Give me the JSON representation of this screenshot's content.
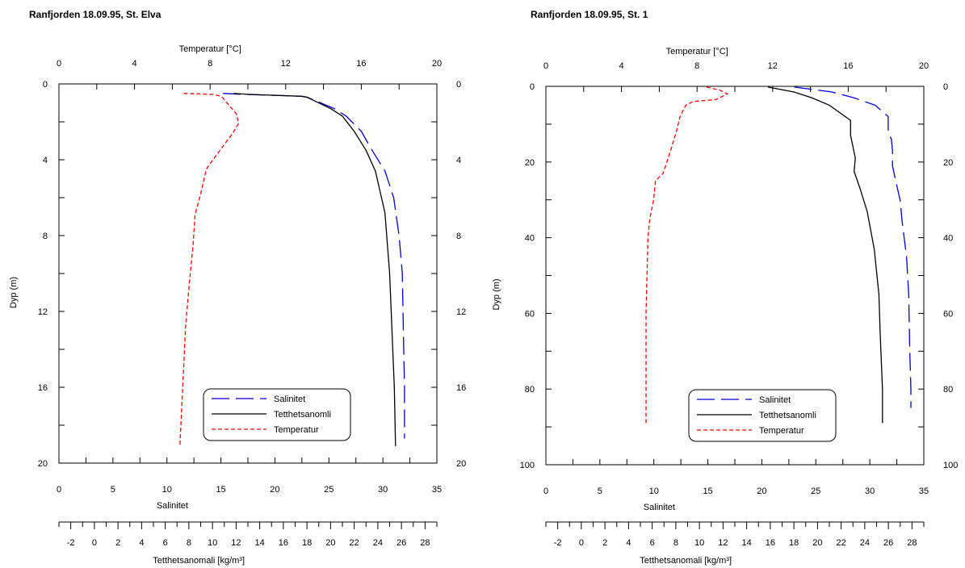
{
  "chart_data": [
    {
      "type": "line",
      "title": "Ranfjorden 18.09.95, St. Elva",
      "ylabel": "Dyp (m)",
      "ylim": [
        20,
        0
      ],
      "yticks": [
        0,
        4,
        8,
        12,
        16,
        20
      ],
      "yticks_right": [
        0,
        4,
        8,
        12,
        16,
        20
      ],
      "top_axis": {
        "label": "Temperatur [°C]",
        "lim": [
          0,
          20
        ],
        "ticks": [
          0,
          4,
          8,
          12,
          16,
          20
        ]
      },
      "bottom_axis": {
        "label": "Salinitet",
        "lim": [
          0,
          35
        ],
        "ticks": [
          0,
          5,
          10,
          15,
          20,
          25,
          30,
          35
        ]
      },
      "density_axis": {
        "label": "Tetthetsanomali [kg/m³]",
        "lim": [
          -3,
          29
        ],
        "ticks": [
          -2,
          0,
          2,
          4,
          6,
          8,
          10,
          12,
          14,
          16,
          18,
          20,
          22,
          24,
          26,
          28
        ]
      },
      "legend": {
        "position": "bottom-right",
        "entries": [
          "Salinitet",
          "Tetthetsanomli",
          "Temperatur"
        ]
      },
      "series": [
        {
          "name": "Salinitet",
          "axis": "salinity",
          "color": "#0000cc",
          "dash": "long",
          "points": [
            [
              15.2,
              0.5
            ],
            [
              17,
              0.55
            ],
            [
              22.5,
              0.65
            ],
            [
              23,
              0.7
            ],
            [
              25.5,
              1.3
            ],
            [
              26.6,
              1.7
            ],
            [
              28,
              2.5
            ],
            [
              29,
              3.5
            ],
            [
              30.2,
              4.6
            ],
            [
              31,
              6
            ],
            [
              31.5,
              8
            ],
            [
              31.8,
              10
            ],
            [
              31.9,
              13
            ],
            [
              32,
              16
            ],
            [
              32,
              18.7
            ]
          ]
        },
        {
          "name": "Tetthetsanomli",
          "axis": "density",
          "color": "#000000",
          "dash": "solid",
          "points": [
            [
              11.8,
              0.5
            ],
            [
              13,
              0.55
            ],
            [
              17.5,
              0.65
            ],
            [
              18,
              0.7
            ],
            [
              20,
              1.3
            ],
            [
              21,
              1.7
            ],
            [
              22,
              2.5
            ],
            [
              23,
              3.5
            ],
            [
              23.8,
              4.6
            ],
            [
              24.6,
              6.8
            ],
            [
              25,
              10
            ],
            [
              25.2,
              13
            ],
            [
              25.4,
              16
            ],
            [
              25.5,
              19.1
            ]
          ]
        },
        {
          "name": "Temperatur",
          "axis": "temperature",
          "color": "#ff0000",
          "dash": "short",
          "points": [
            [
              6.6,
              0.5
            ],
            [
              8.1,
              0.55
            ],
            [
              8.6,
              0.65
            ],
            [
              9.4,
              1.6
            ],
            [
              9.5,
              2.1
            ],
            [
              9.2,
              2.6
            ],
            [
              8.6,
              3.4
            ],
            [
              8,
              4.2
            ],
            [
              7.8,
              4.5
            ],
            [
              7.5,
              5.8
            ],
            [
              7.2,
              6.9
            ],
            [
              7.1,
              8.5
            ],
            [
              6.9,
              10.5
            ],
            [
              6.7,
              12.8
            ],
            [
              6.6,
              15
            ],
            [
              6.5,
              17
            ],
            [
              6.4,
              19.1
            ]
          ]
        }
      ]
    },
    {
      "type": "line",
      "title": "Ranfjorden 18.09.95, St. 1",
      "ylabel": "Dyp (m)",
      "ylim": [
        100,
        0
      ],
      "yticks": [
        0,
        20,
        40,
        60,
        80,
        100
      ],
      "yticks_right": [
        0,
        20,
        40,
        60,
        80,
        100
      ],
      "top_axis": {
        "label": "Temperatur [°C]",
        "lim": [
          0,
          20
        ],
        "ticks": [
          0,
          4,
          8,
          12,
          16,
          20
        ]
      },
      "bottom_axis": {
        "label": "Salinitet",
        "lim": [
          0,
          35
        ],
        "ticks": [
          0,
          5,
          10,
          15,
          20,
          25,
          30,
          35
        ]
      },
      "density_axis": {
        "label": "Tetthetsanomali [kg/m³]",
        "lim": [
          -3,
          29
        ],
        "ticks": [
          -2,
          0,
          2,
          4,
          6,
          8,
          10,
          12,
          14,
          16,
          18,
          20,
          22,
          24,
          26,
          28
        ]
      },
      "legend": {
        "position": "bottom-right",
        "entries": [
          "Salinitet",
          "Tetthetsanomli",
          "Temperatur"
        ]
      },
      "series": [
        {
          "name": "Salinitet",
          "axis": "salinity",
          "color": "#0000cc",
          "dash": "long",
          "points": [
            [
              23,
              0.2
            ],
            [
              26.5,
              1.5
            ],
            [
              28.5,
              3
            ],
            [
              30.5,
              5
            ],
            [
              31.7,
              8
            ],
            [
              31.7,
              12
            ],
            [
              32,
              14
            ],
            [
              32.1,
              17
            ],
            [
              32.1,
              21
            ],
            [
              32.4,
              25
            ],
            [
              32.8,
              30
            ],
            [
              33,
              36
            ],
            [
              33.4,
              45
            ],
            [
              33.6,
              55
            ],
            [
              33.7,
              70
            ],
            [
              33.8,
              80
            ],
            [
              33.8,
              85
            ]
          ]
        },
        {
          "name": "Tetthetsanomli",
          "axis": "density",
          "color": "#000000",
          "dash": "solid",
          "points": [
            [
              15.8,
              0.2
            ],
            [
              18,
              1.5
            ],
            [
              19.5,
              3
            ],
            [
              21,
              5
            ],
            [
              22.8,
              9
            ],
            [
              22.8,
              13
            ],
            [
              23,
              16
            ],
            [
              23.2,
              19
            ],
            [
              23.1,
              22.5
            ],
            [
              23.6,
              27
            ],
            [
              24.2,
              33
            ],
            [
              24.8,
              43
            ],
            [
              25.2,
              55
            ],
            [
              25.3,
              65
            ],
            [
              25.5,
              80
            ],
            [
              25.5,
              89
            ]
          ]
        },
        {
          "name": "Temperatur",
          "axis": "temperature",
          "color": "#ff0000",
          "dash": "short",
          "points": [
            [
              8.5,
              0.2
            ],
            [
              9.2,
              1
            ],
            [
              9.6,
              2
            ],
            [
              9,
              3.5
            ],
            [
              7.8,
              4
            ],
            [
              7.4,
              5
            ],
            [
              7.1,
              8
            ],
            [
              6.9,
              12
            ],
            [
              6.6,
              17
            ],
            [
              6.4,
              20
            ],
            [
              6.2,
              23
            ],
            [
              5.8,
              25
            ],
            [
              5.7,
              30
            ],
            [
              5.5,
              35
            ],
            [
              5.4,
              40
            ],
            [
              5.35,
              50
            ],
            [
              5.3,
              60
            ],
            [
              5.3,
              70
            ],
            [
              5.3,
              80
            ],
            [
              5.3,
              89
            ]
          ]
        }
      ]
    }
  ]
}
